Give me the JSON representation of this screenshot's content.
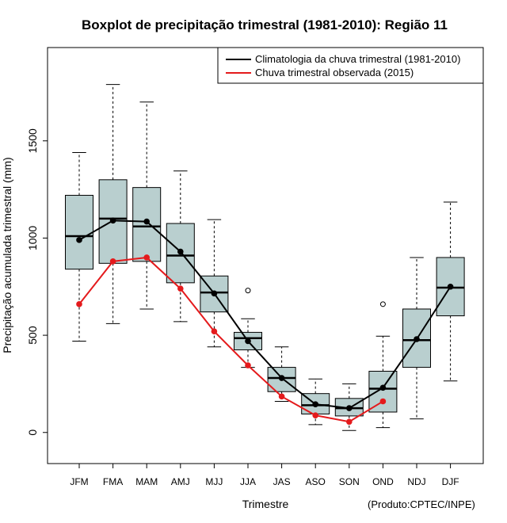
{
  "chart_data": {
    "type": "boxplot",
    "title": "Boxplot de precipitação trimestral (1981-2010): Região 11",
    "xlabel": "Trimestre",
    "ylabel": "Precipitação acumulada trimestral (mm)",
    "credit": "(Produto:CPTEC/INPE)",
    "ylim": [
      -160,
      1980
    ],
    "yticks": [
      0,
      500,
      1000,
      1500
    ],
    "ytick_labels": [
      "0",
      "500",
      "1000",
      "1500"
    ],
    "categories": [
      "JFM",
      "FMA",
      "MAM",
      "AMJ",
      "MJJ",
      "JJA",
      "JAS",
      "ASO",
      "SON",
      "OND",
      "NDJ",
      "DJF"
    ],
    "box_color": "#b9cfcf",
    "boxes": [
      {
        "whisker_low": 470,
        "q1": 840,
        "median": 1010,
        "q3": 1220,
        "whisker_high": 1440,
        "outliers": []
      },
      {
        "whisker_low": 560,
        "q1": 870,
        "median": 1100,
        "q3": 1300,
        "whisker_high": 1790,
        "outliers": []
      },
      {
        "whisker_low": 635,
        "q1": 880,
        "median": 1060,
        "q3": 1260,
        "whisker_high": 1700,
        "outliers": []
      },
      {
        "whisker_low": 570,
        "q1": 770,
        "median": 910,
        "q3": 1075,
        "whisker_high": 1345,
        "outliers": []
      },
      {
        "whisker_low": 440,
        "q1": 620,
        "median": 720,
        "q3": 805,
        "whisker_high": 1095,
        "outliers": []
      },
      {
        "whisker_low": 335,
        "q1": 425,
        "median": 485,
        "q3": 515,
        "whisker_high": 585,
        "outliers": [
          730
        ]
      },
      {
        "whisker_low": 160,
        "q1": 210,
        "median": 280,
        "q3": 335,
        "whisker_high": 440,
        "outliers": []
      },
      {
        "whisker_low": 40,
        "q1": 95,
        "median": 140,
        "q3": 200,
        "whisker_high": 275,
        "outliers": []
      },
      {
        "whisker_low": 10,
        "q1": 85,
        "median": 125,
        "q3": 175,
        "whisker_high": 250,
        "outliers": []
      },
      {
        "whisker_low": 25,
        "q1": 105,
        "median": 225,
        "q3": 315,
        "whisker_high": 495,
        "outliers": [
          660
        ]
      },
      {
        "whisker_low": 70,
        "q1": 335,
        "median": 475,
        "q3": 635,
        "whisker_high": 900,
        "outliers": []
      },
      {
        "whisker_low": 265,
        "q1": 600,
        "median": 745,
        "q3": 900,
        "whisker_high": 1185,
        "outliers": []
      }
    ],
    "series": [
      {
        "name": "Climatologia da chuva trimestral (1981-2010)",
        "color": "#000000",
        "values": [
          990,
          1090,
          1085,
          930,
          715,
          470,
          280,
          145,
          125,
          230,
          480,
          750
        ]
      },
      {
        "name": "Chuva trimestral observada (2015)",
        "color": "#e41a1c",
        "values": [
          660,
          880,
          900,
          740,
          520,
          345,
          185,
          88,
          55,
          160,
          null,
          null
        ]
      }
    ],
    "legend": {
      "position": "top-right"
    }
  }
}
